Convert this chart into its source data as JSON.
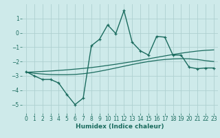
{
  "xlabel": "Humidex (Indice chaleur)",
  "background_color": "#ceeaea",
  "grid_color": "#aed0d0",
  "line_color": "#1a6b5e",
  "x_data": [
    0,
    1,
    2,
    3,
    4,
    5,
    6,
    7,
    8,
    9,
    10,
    11,
    12,
    13,
    14,
    15,
    16,
    17,
    18,
    19,
    20,
    21,
    22,
    23
  ],
  "y_main": [
    -2.7,
    -3.0,
    -3.25,
    -3.25,
    -3.5,
    -4.3,
    -5.0,
    -4.55,
    -0.9,
    -0.45,
    0.55,
    -0.05,
    1.55,
    -0.65,
    -1.25,
    -1.55,
    -0.25,
    -0.3,
    -1.55,
    -1.55,
    -2.4,
    -2.5,
    -2.45,
    -2.45
  ],
  "y_trend1": [
    -2.75,
    -2.72,
    -2.69,
    -2.66,
    -2.62,
    -2.58,
    -2.53,
    -2.48,
    -2.42,
    -2.35,
    -2.27,
    -2.19,
    -2.1,
    -2.01,
    -1.91,
    -1.81,
    -1.71,
    -1.61,
    -1.51,
    -1.42,
    -1.34,
    -1.27,
    -1.22,
    -1.19
  ],
  "y_trend2": [
    -2.75,
    -2.82,
    -2.87,
    -2.91,
    -2.92,
    -2.92,
    -2.9,
    -2.85,
    -2.78,
    -2.68,
    -2.57,
    -2.45,
    -2.33,
    -2.21,
    -2.1,
    -2.0,
    -1.92,
    -1.86,
    -1.82,
    -1.8,
    -1.81,
    -1.86,
    -1.94,
    -2.0
  ],
  "ylim": [
    -5.6,
    2.0
  ],
  "xlim": [
    -0.5,
    23.5
  ],
  "yticks": [
    -5,
    -4,
    -3,
    -2,
    -1,
    0,
    1
  ],
  "xticks": [
    0,
    1,
    2,
    3,
    4,
    5,
    6,
    7,
    8,
    9,
    10,
    11,
    12,
    13,
    14,
    15,
    16,
    17,
    18,
    19,
    20,
    21,
    22,
    23
  ]
}
